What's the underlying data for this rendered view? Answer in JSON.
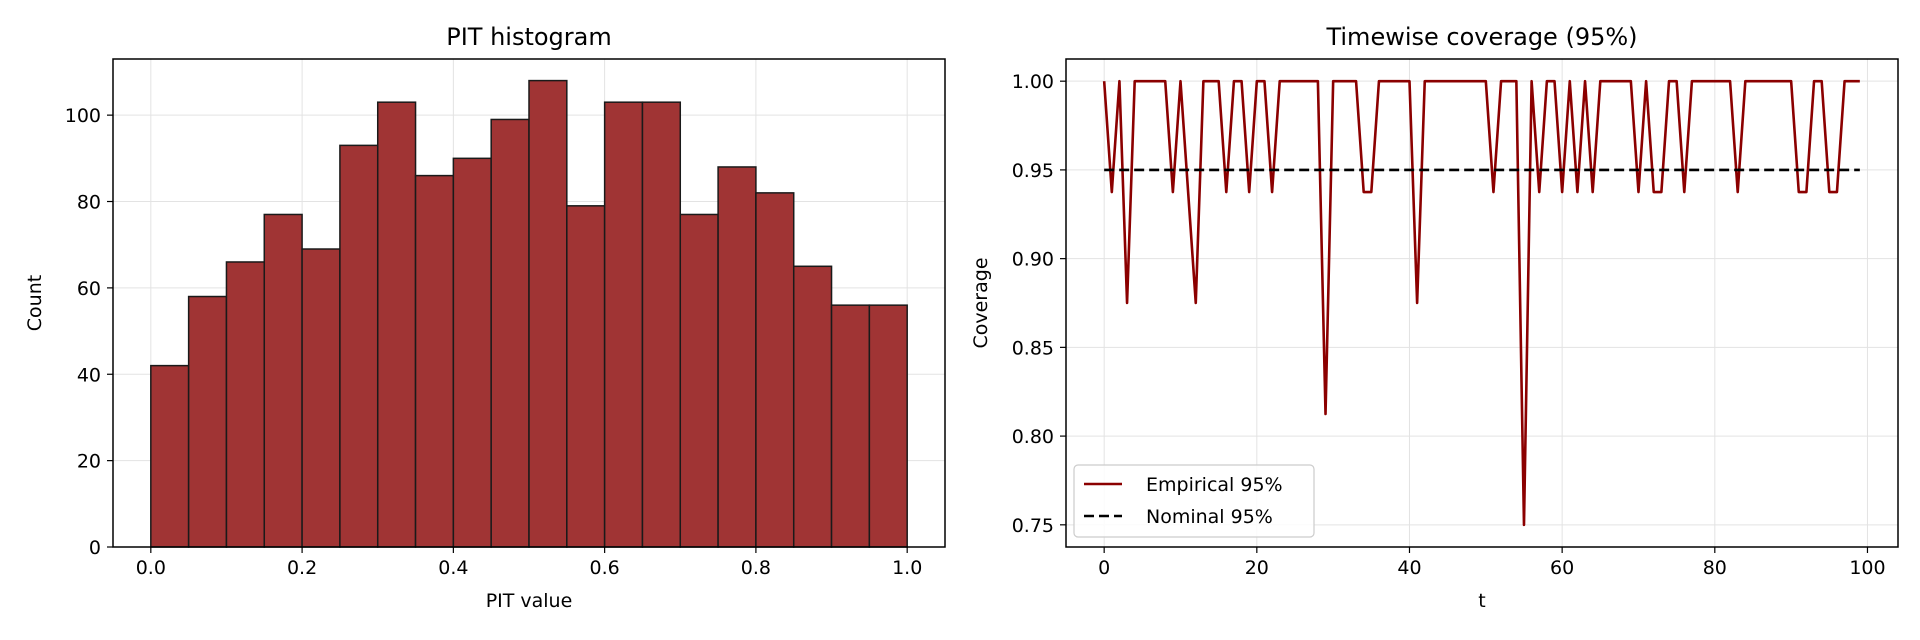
{
  "chart_data": [
    {
      "type": "bar",
      "title": "PIT histogram",
      "xlabel": "PIT value",
      "ylabel": "Count",
      "bin_edges": [
        0.0,
        0.05,
        0.1,
        0.15,
        0.2,
        0.25,
        0.3,
        0.35,
        0.4,
        0.45,
        0.5,
        0.55,
        0.6,
        0.65,
        0.7,
        0.75,
        0.8,
        0.85,
        0.9,
        0.95,
        1.0
      ],
      "values": [
        42,
        58,
        66,
        77,
        69,
        93,
        103,
        86,
        90,
        99,
        108,
        79,
        103,
        103,
        77,
        88,
        82,
        65,
        56,
        56
      ],
      "xlim": [
        -0.05,
        1.05
      ],
      "ylim": [
        0,
        113
      ],
      "xticks": [
        0.0,
        0.2,
        0.4,
        0.6,
        0.8,
        1.0
      ],
      "xtick_labels": [
        "0.0",
        "0.2",
        "0.4",
        "0.6",
        "0.8",
        "1.0"
      ],
      "yticks": [
        0,
        20,
        40,
        60,
        80,
        100
      ],
      "ytick_labels": [
        "0",
        "20",
        "40",
        "60",
        "80",
        "100"
      ],
      "grid": true,
      "bar_color": "#a03434",
      "edge_color": "#1a1a1a"
    },
    {
      "type": "line",
      "title": "Timewise coverage (95%)",
      "xlabel": "t",
      "ylabel": "Coverage",
      "xlim": [
        -5,
        104
      ],
      "ylim": [
        0.7375,
        1.0125
      ],
      "xticks": [
        0,
        20,
        40,
        60,
        80,
        100
      ],
      "xtick_labels": [
        "0",
        "20",
        "40",
        "60",
        "80",
        "100"
      ],
      "yticks": [
        0.75,
        0.8,
        0.85,
        0.9,
        0.95,
        1.0
      ],
      "ytick_labels": [
        "0.75",
        "0.80",
        "0.85",
        "0.90",
        "0.95",
        "1.00"
      ],
      "grid": true,
      "legend_position": "lower-left",
      "series": [
        {
          "name": "Empirical 95%",
          "color": "#8b0000",
          "style": "solid",
          "x": [
            0,
            1,
            2,
            3,
            4,
            5,
            6,
            7,
            8,
            9,
            10,
            11,
            12,
            13,
            14,
            15,
            16,
            17,
            18,
            19,
            20,
            21,
            22,
            23,
            24,
            25,
            26,
            27,
            28,
            29,
            30,
            31,
            32,
            33,
            34,
            35,
            36,
            37,
            38,
            39,
            40,
            41,
            42,
            43,
            44,
            45,
            46,
            47,
            48,
            49,
            50,
            51,
            52,
            53,
            54,
            55,
            56,
            57,
            58,
            59,
            60,
            61,
            62,
            63,
            64,
            65,
            66,
            67,
            68,
            69,
            70,
            71,
            72,
            73,
            74,
            75,
            76,
            77,
            78,
            79,
            80,
            81,
            82,
            83,
            84,
            85,
            86,
            87,
            88,
            89,
            90,
            91,
            92,
            93,
            94,
            95,
            96,
            97,
            98,
            99
          ],
          "y": [
            1.0,
            0.9375,
            1.0,
            0.875,
            1.0,
            1.0,
            1.0,
            1.0,
            1.0,
            0.9375,
            1.0,
            0.9375,
            0.875,
            1.0,
            1.0,
            1.0,
            0.9375,
            1.0,
            1.0,
            0.9375,
            1.0,
            1.0,
            0.9375,
            1.0,
            1.0,
            1.0,
            1.0,
            1.0,
            1.0,
            0.8125,
            1.0,
            1.0,
            1.0,
            1.0,
            0.9375,
            0.9375,
            1.0,
            1.0,
            1.0,
            1.0,
            1.0,
            0.875,
            1.0,
            1.0,
            1.0,
            1.0,
            1.0,
            1.0,
            1.0,
            1.0,
            1.0,
            0.9375,
            1.0,
            1.0,
            1.0,
            0.75,
            1.0,
            0.9375,
            1.0,
            1.0,
            0.9375,
            1.0,
            0.9375,
            1.0,
            0.9375,
            1.0,
            1.0,
            1.0,
            1.0,
            1.0,
            0.9375,
            1.0,
            0.9375,
            0.9375,
            1.0,
            1.0,
            0.9375,
            1.0,
            1.0,
            1.0,
            1.0,
            1.0,
            1.0,
            0.9375,
            1.0,
            1.0,
            1.0,
            1.0,
            1.0,
            1.0,
            1.0,
            0.9375,
            0.9375,
            1.0,
            1.0,
            0.9375,
            0.9375,
            1.0,
            1.0,
            1.0
          ]
        },
        {
          "name": "Nominal 95%",
          "color": "#000000",
          "style": "dashed",
          "x": [
            0,
            99
          ],
          "y": [
            0.95,
            0.95
          ]
        }
      ]
    }
  ]
}
